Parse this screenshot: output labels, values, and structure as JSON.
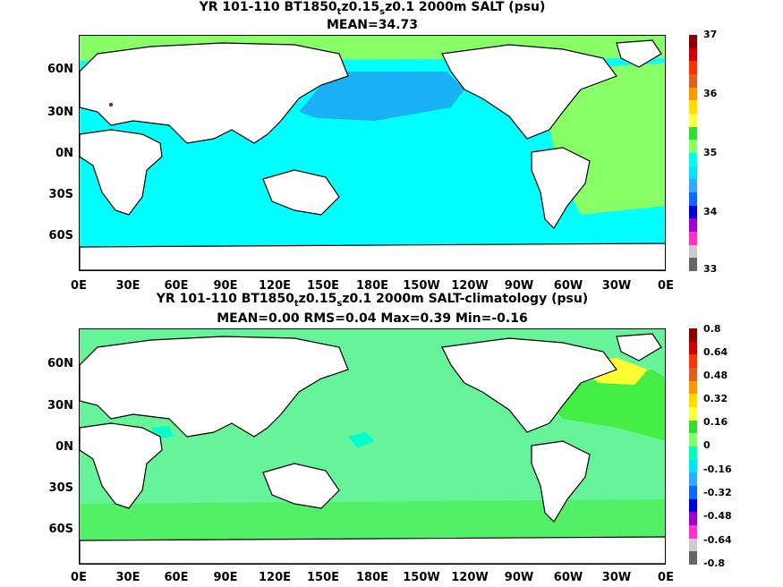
{
  "panels": [
    {
      "title_parts": [
        "YR 101-110 BT1850",
        "t",
        "z0.15",
        "s",
        "z0.1 2000m SALT (psu)"
      ],
      "subtitle": "MEAN=34.73",
      "colorbar": {
        "labels": [
          "37",
          "36",
          "35",
          "34",
          "33"
        ],
        "colors": [
          "#8b0000",
          "#cc0000",
          "#ff3300",
          "#e06020",
          "#ff9900",
          "#ffdd00",
          "#ffff44",
          "#33dd33",
          "#88ff66",
          "#00ffee",
          "#00e5ff",
          "#33aaff",
          "#1166ff",
          "#0000dd",
          "#9900cc",
          "#ff33cc",
          "#cccccc",
          "#666666"
        ]
      }
    },
    {
      "title_parts": [
        "YR 101-110 BT1850",
        "t",
        "z0.15",
        "s",
        "z0.1 2000m SALT-climatology (psu)"
      ],
      "subtitle": "MEAN=0.00   RMS=0.04   Max=0.39   Min=-0.16",
      "colorbar": {
        "labels": [
          "0.8",
          "0.64",
          "0.48",
          "0.32",
          "0.16",
          "0",
          "-0.16",
          "-0.32",
          "-0.48",
          "-0.64",
          "-0.8"
        ],
        "colors": [
          "#8b0000",
          "#cc0000",
          "#ff3300",
          "#e06020",
          "#ff9900",
          "#ffdd00",
          "#ffff44",
          "#33dd33",
          "#88ff66",
          "#00ffbb",
          "#00e5ff",
          "#33aaff",
          "#1166ff",
          "#0000dd",
          "#9900cc",
          "#ff33cc",
          "#cccccc",
          "#666666"
        ]
      }
    }
  ],
  "lat_labels": [
    "60N",
    "30N",
    "0N",
    "30S",
    "60S"
  ],
  "lon_labels": [
    "0E",
    "30E",
    "60E",
    "90E",
    "120E",
    "150E",
    "180E",
    "150W",
    "120W",
    "90W",
    "60W",
    "30W",
    "0E"
  ],
  "colors": {
    "land": "#ffffff",
    "ocean_map1_main": "#00ffff",
    "ocean_map1_npac": "#1ab0f5",
    "ocean_map1_atl": "#88ff66",
    "ocean_map2_main": "#66f39a",
    "ocean_map2_green": "#44ee44",
    "ocean_map2_yellow": "#ffff33",
    "ocean_map2_cyan": "#00ffcc"
  }
}
